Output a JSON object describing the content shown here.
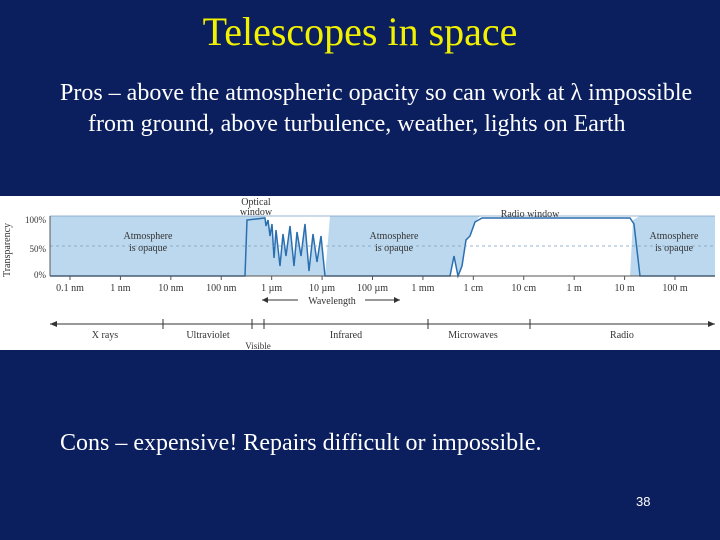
{
  "slide": {
    "title": "Telescopes in space",
    "pros_text": "Pros – above the atmospheric opacity so can work at λ impossible from ground,  above turbulence, weather, lights on Earth",
    "cons_text": "Cons – expensive!  Repairs difficult or impossible.",
    "page_number": "38"
  },
  "figure": {
    "y_axis_label": "Transparency",
    "y_ticks": [
      "100%",
      "50%",
      "0%"
    ],
    "wavelength_ticks": [
      "0.1 nm",
      "1 nm",
      "10 nm",
      "100 nm",
      "1 µm",
      "10 µm",
      "100 µm",
      "1 mm",
      "1 cm",
      "10 cm",
      "1 m",
      "10 m",
      "100 m"
    ],
    "x_axis_label": "Wavelength",
    "optical_window_line1": "Optical",
    "optical_window_line2": "window",
    "radio_window": "Radio window",
    "opaque_left_line1": "Atmosphere",
    "opaque_left_line2": "is opaque",
    "opaque_mid_line1": "Atmosphere",
    "opaque_mid_line2": "is opaque",
    "opaque_right_line1": "Atmosphere",
    "opaque_right_line2": "is opaque",
    "bands": [
      "X rays",
      "Ultraviolet",
      "Infrared",
      "Microwaves",
      "Radio"
    ],
    "visible_label": "Visible",
    "colors": {
      "opaque_fill": "#bcd8ee",
      "curve": "#2a6fb0",
      "window_fill": "#ffffff"
    }
  }
}
